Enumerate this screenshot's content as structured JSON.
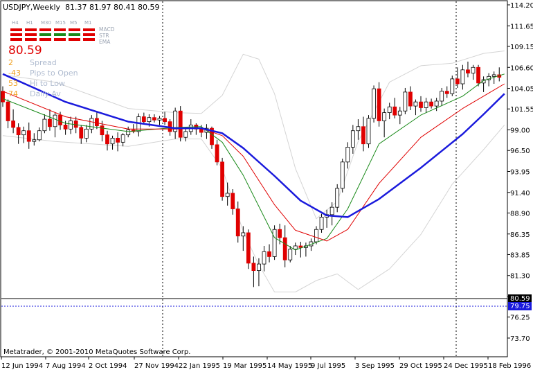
{
  "header": {
    "symbol_tf": "USDJPY,Weekly",
    "ohlc": "81.37 81.97 80.41 80.59"
  },
  "panel": {
    "timeframes": [
      "H4",
      "H1",
      "M30",
      "M15",
      "M5",
      "M1"
    ],
    "indicators": [
      "MACD",
      "STR",
      "EMA"
    ],
    "grid_colors": [
      [
        "#e00000",
        "#e00000",
        "#e00000",
        "#e00000",
        "#e00000",
        "#e00000"
      ],
      [
        "#e00000",
        "#e00000",
        "#1a8a1a",
        "#1a8a1a",
        "#1a8a1a",
        "#e00000"
      ],
      [
        "#e00000",
        "#e00000",
        "#e00000",
        "#e00000",
        "#e00000",
        "#e00000"
      ]
    ],
    "price": "80.59",
    "rows": [
      {
        "value": "2",
        "label": "Spread",
        "color": "#f0a020"
      },
      {
        "value": "-43",
        "label": "Pips to Open",
        "color": "#f0a020"
      },
      {
        "value": "53",
        "label": "Hi to Low",
        "color": "#f0a020"
      },
      {
        "value": "74",
        "label": "Daily Av",
        "color": "#f0a020"
      }
    ]
  },
  "copyright": "Metatrader, © 2001-2010 MetaQuotes Software Corp.",
  "y_axis": {
    "ticks": [
      "114.20",
      "111.65",
      "109.15",
      "106.60",
      "104.05",
      "101.55",
      "99.00",
      "96.50",
      "93.95",
      "91.40",
      "88.90",
      "86.35",
      "83.85",
      "81.30",
      "78.75",
      "76.25",
      "73.70"
    ],
    "current_price": "80.59",
    "dashed_level": "79.75"
  },
  "x_axis": {
    "ticks": [
      "12 Jun 1994",
      "7 Aug 1994",
      "2 Oct 1994",
      "27 Nov 1994",
      "22 Jan 1995",
      "19 Mar 1995",
      "14 May 1995",
      "9 Jul 1995",
      "3 Sep 1995",
      "29 Oct 1995",
      "24 Dec 1995",
      "18 Feb 1996"
    ]
  },
  "chart_data": {
    "type": "candlestick",
    "title": "USDJPY,Weekly",
    "ylim": [
      73.7,
      114.2
    ],
    "y_ticks": [
      114.2,
      111.65,
      109.15,
      106.6,
      104.05,
      101.55,
      99.0,
      96.5,
      93.95,
      91.4,
      88.9,
      86.35,
      83.85,
      81.3,
      78.75,
      76.25,
      73.7
    ],
    "x_ticks": [
      "12 Jun 1994",
      "7 Aug 1994",
      "2 Oct 1994",
      "27 Nov 1994",
      "22 Jan 1995",
      "19 Mar 1995",
      "14 May 1995",
      "9 Jul 1995",
      "3 Sep 1995",
      "29 Oct 1995",
      "24 Dec 1995",
      "18 Feb 1996"
    ],
    "bull_color": "#ffffff",
    "bear_color": "#e00000",
    "candles": [
      [
        103.7,
        104.3,
        101.8,
        102.4
      ],
      [
        102.4,
        102.7,
        99.2,
        100.1
      ],
      [
        100.1,
        101.5,
        98.6,
        99.3
      ],
      [
        99.3,
        99.8,
        97.3,
        98.4
      ],
      [
        98.4,
        99.4,
        97.4,
        98.9
      ],
      [
        98.9,
        99.9,
        96.7,
        97.6
      ],
      [
        97.6,
        98.6,
        97.1,
        97.8
      ],
      [
        97.8,
        99.3,
        97.6,
        98.9
      ],
      [
        98.9,
        100.9,
        98.6,
        100.3
      ],
      [
        100.3,
        101.5,
        98.9,
        99.4
      ],
      [
        99.4,
        101.1,
        98.1,
        100.8
      ],
      [
        100.8,
        101.2,
        99.0,
        99.6
      ],
      [
        99.6,
        100.1,
        98.4,
        99.1
      ],
      [
        99.1,
        100.6,
        98.5,
        100.1
      ],
      [
        100.1,
        100.6,
        98.6,
        99.3
      ],
      [
        99.3,
        99.6,
        97.3,
        98.0
      ],
      [
        98.0,
        99.6,
        97.5,
        99.1
      ],
      [
        99.1,
        100.8,
        98.6,
        100.4
      ],
      [
        100.4,
        101.3,
        99.1,
        99.5
      ],
      [
        99.5,
        100.1,
        97.6,
        98.4
      ],
      [
        98.4,
        98.9,
        96.5,
        97.3
      ],
      [
        97.3,
        98.3,
        96.6,
        98.0
      ],
      [
        98.0,
        98.7,
        96.4,
        97.5
      ],
      [
        97.5,
        98.6,
        97.0,
        98.4
      ],
      [
        98.4,
        99.4,
        98.1,
        99.0
      ],
      [
        99.0,
        99.7,
        98.6,
        98.8
      ],
      [
        98.8,
        101.0,
        98.2,
        100.6
      ],
      [
        100.6,
        101.1,
        99.7,
        100.0
      ],
      [
        100.0,
        100.9,
        99.4,
        100.5
      ],
      [
        100.5,
        100.9,
        99.9,
        100.2
      ],
      [
        100.2,
        100.7,
        99.6,
        100.4
      ],
      [
        100.4,
        101.2,
        99.6,
        100.0
      ],
      [
        100.0,
        100.3,
        98.3,
        98.8
      ],
      [
        98.8,
        101.7,
        97.9,
        101.3
      ],
      [
        101.3,
        101.9,
        97.6,
        98.1
      ],
      [
        98.1,
        99.2,
        97.6,
        98.8
      ],
      [
        98.8,
        100.3,
        98.4,
        99.6
      ],
      [
        99.6,
        99.8,
        98.4,
        99.1
      ],
      [
        99.1,
        99.6,
        98.1,
        98.7
      ],
      [
        98.7,
        99.7,
        97.9,
        99.2
      ],
      [
        99.2,
        99.4,
        96.7,
        97.2
      ],
      [
        97.2,
        97.8,
        94.7,
        95.1
      ],
      [
        95.1,
        95.6,
        90.4,
        90.9
      ],
      [
        90.9,
        92.6,
        89.8,
        91.3
      ],
      [
        91.3,
        91.8,
        88.7,
        89.4
      ],
      [
        89.4,
        90.3,
        85.3,
        86.1
      ],
      [
        86.1,
        87.3,
        84.3,
        86.5
      ],
      [
        86.5,
        86.9,
        82.1,
        82.8
      ],
      [
        82.8,
        83.6,
        79.9,
        81.9
      ],
      [
        81.9,
        83.4,
        80.0,
        82.7
      ],
      [
        82.7,
        84.9,
        81.8,
        84.2
      ],
      [
        84.2,
        85.1,
        82.9,
        83.6
      ],
      [
        83.6,
        87.4,
        83.2,
        86.9
      ],
      [
        86.9,
        87.6,
        85.1,
        85.9
      ],
      [
        85.9,
        87.4,
        82.3,
        83.2
      ],
      [
        83.2,
        84.9,
        82.9,
        84.5
      ],
      [
        84.5,
        85.3,
        83.8,
        84.9
      ],
      [
        84.9,
        85.4,
        83.5,
        84.7
      ],
      [
        84.7,
        85.3,
        83.6,
        84.9
      ],
      [
        84.9,
        85.8,
        84.3,
        85.4
      ],
      [
        85.4,
        87.3,
        85.1,
        86.9
      ],
      [
        86.9,
        88.8,
        86.5,
        88.4
      ],
      [
        88.4,
        89.3,
        87.1,
        88.7
      ],
      [
        88.7,
        90.2,
        87.4,
        89.6
      ],
      [
        89.6,
        92.4,
        89.0,
        91.9
      ],
      [
        91.9,
        95.5,
        91.4,
        95.1
      ],
      [
        95.1,
        97.5,
        94.3,
        96.9
      ],
      [
        96.9,
        99.6,
        96.1,
        98.9
      ],
      [
        98.9,
        100.3,
        97.8,
        99.4
      ],
      [
        99.4,
        100.6,
        96.4,
        97.3
      ],
      [
        97.3,
        100.8,
        96.8,
        100.4
      ],
      [
        100.4,
        104.4,
        99.9,
        104.0
      ],
      [
        104.0,
        104.8,
        99.4,
        100.1
      ],
      [
        100.1,
        101.6,
        98.1,
        101.1
      ],
      [
        101.1,
        102.3,
        100.3,
        101.8
      ],
      [
        101.8,
        102.9,
        100.4,
        100.8
      ],
      [
        100.8,
        101.8,
        99.7,
        101.3
      ],
      [
        101.3,
        104.1,
        100.9,
        103.6
      ],
      [
        103.6,
        104.3,
        101.4,
        101.9
      ],
      [
        101.9,
        102.7,
        100.8,
        102.4
      ],
      [
        102.4,
        103.1,
        101.2,
        101.7
      ],
      [
        101.7,
        102.9,
        101.1,
        102.4
      ],
      [
        102.4,
        102.8,
        101.6,
        101.9
      ],
      [
        101.9,
        102.9,
        101.3,
        102.5
      ],
      [
        102.5,
        104.1,
        101.9,
        103.7
      ],
      [
        103.7,
        104.3,
        102.9,
        103.4
      ],
      [
        103.4,
        105.6,
        103.1,
        105.2
      ],
      [
        105.2,
        106.6,
        104.1,
        104.6
      ],
      [
        104.6,
        106.9,
        103.9,
        106.3
      ],
      [
        106.3,
        107.3,
        105.4,
        105.9
      ],
      [
        105.9,
        106.9,
        105.1,
        106.6
      ],
      [
        106.6,
        106.9,
        104.3,
        104.7
      ],
      [
        104.7,
        105.5,
        103.6,
        105.1
      ],
      [
        105.1,
        105.9,
        104.3,
        105.5
      ],
      [
        105.5,
        106.1,
        104.6,
        105.7
      ],
      [
        105.7,
        106.6,
        104.9,
        105.4
      ]
    ],
    "ema_green": [
      [
        0,
        102.8
      ],
      [
        12,
        99.8
      ],
      [
        24,
        98.8
      ],
      [
        33,
        99.3
      ],
      [
        38,
        99.4
      ],
      [
        42,
        97.5
      ],
      [
        46,
        93.5
      ],
      [
        52,
        85.9
      ],
      [
        56,
        84.4
      ],
      [
        62,
        85.8
      ],
      [
        66,
        89.4
      ],
      [
        72,
        97.3
      ],
      [
        80,
        100.8
      ],
      [
        88,
        103.1
      ],
      [
        92,
        105.0
      ],
      [
        96,
        105.8
      ]
    ],
    "ema_red": [
      [
        0,
        103.7
      ],
      [
        12,
        100.6
      ],
      [
        24,
        99.1
      ],
      [
        33,
        99.1
      ],
      [
        38,
        99.2
      ],
      [
        42,
        98.3
      ],
      [
        46,
        95.8
      ],
      [
        52,
        89.9
      ],
      [
        56,
        86.8
      ],
      [
        62,
        85.5
      ],
      [
        66,
        86.9
      ],
      [
        72,
        92.5
      ],
      [
        80,
        98.1
      ],
      [
        88,
        101.6
      ],
      [
        92,
        103.1
      ],
      [
        96,
        104.6
      ]
    ],
    "ema_blue": [
      [
        0,
        105.8
      ],
      [
        12,
        102.4
      ],
      [
        24,
        100.0
      ],
      [
        33,
        99.2
      ],
      [
        38,
        99.2
      ],
      [
        42,
        98.6
      ],
      [
        46,
        96.8
      ],
      [
        52,
        93.4
      ],
      [
        57,
        90.4
      ],
      [
        62,
        88.6
      ],
      [
        66,
        88.4
      ],
      [
        72,
        90.6
      ],
      [
        80,
        94.4
      ],
      [
        88,
        98.5
      ],
      [
        92,
        100.9
      ],
      [
        96,
        103.4
      ]
    ],
    "band_upper": [
      [
        0,
        105.7
      ],
      [
        10,
        104.8
      ],
      [
        24,
        101.6
      ],
      [
        33,
        101.1
      ],
      [
        38,
        101.0
      ],
      [
        42,
        103.2
      ],
      [
        46,
        108.2
      ],
      [
        49,
        107.6
      ],
      [
        52,
        103.4
      ],
      [
        56,
        94.3
      ],
      [
        60,
        88.2
      ],
      [
        64,
        90.3
      ],
      [
        68,
        97.6
      ],
      [
        74,
        104.8
      ],
      [
        80,
        106.8
      ],
      [
        86,
        107.1
      ],
      [
        92,
        108.3
      ],
      [
        96,
        108.6
      ]
    ],
    "band_lower": [
      [
        0,
        98.3
      ],
      [
        10,
        97.6
      ],
      [
        24,
        97.0
      ],
      [
        33,
        97.9
      ],
      [
        38,
        97.9
      ],
      [
        42,
        94.3
      ],
      [
        46,
        86.7
      ],
      [
        49,
        82.6
      ],
      [
        52,
        79.3
      ],
      [
        56,
        79.3
      ],
      [
        60,
        80.7
      ],
      [
        64,
        81.5
      ],
      [
        68,
        79.6
      ],
      [
        74,
        82.1
      ],
      [
        80,
        86.3
      ],
      [
        86,
        92.4
      ],
      [
        92,
        96.6
      ],
      [
        96,
        99.6
      ]
    ]
  }
}
